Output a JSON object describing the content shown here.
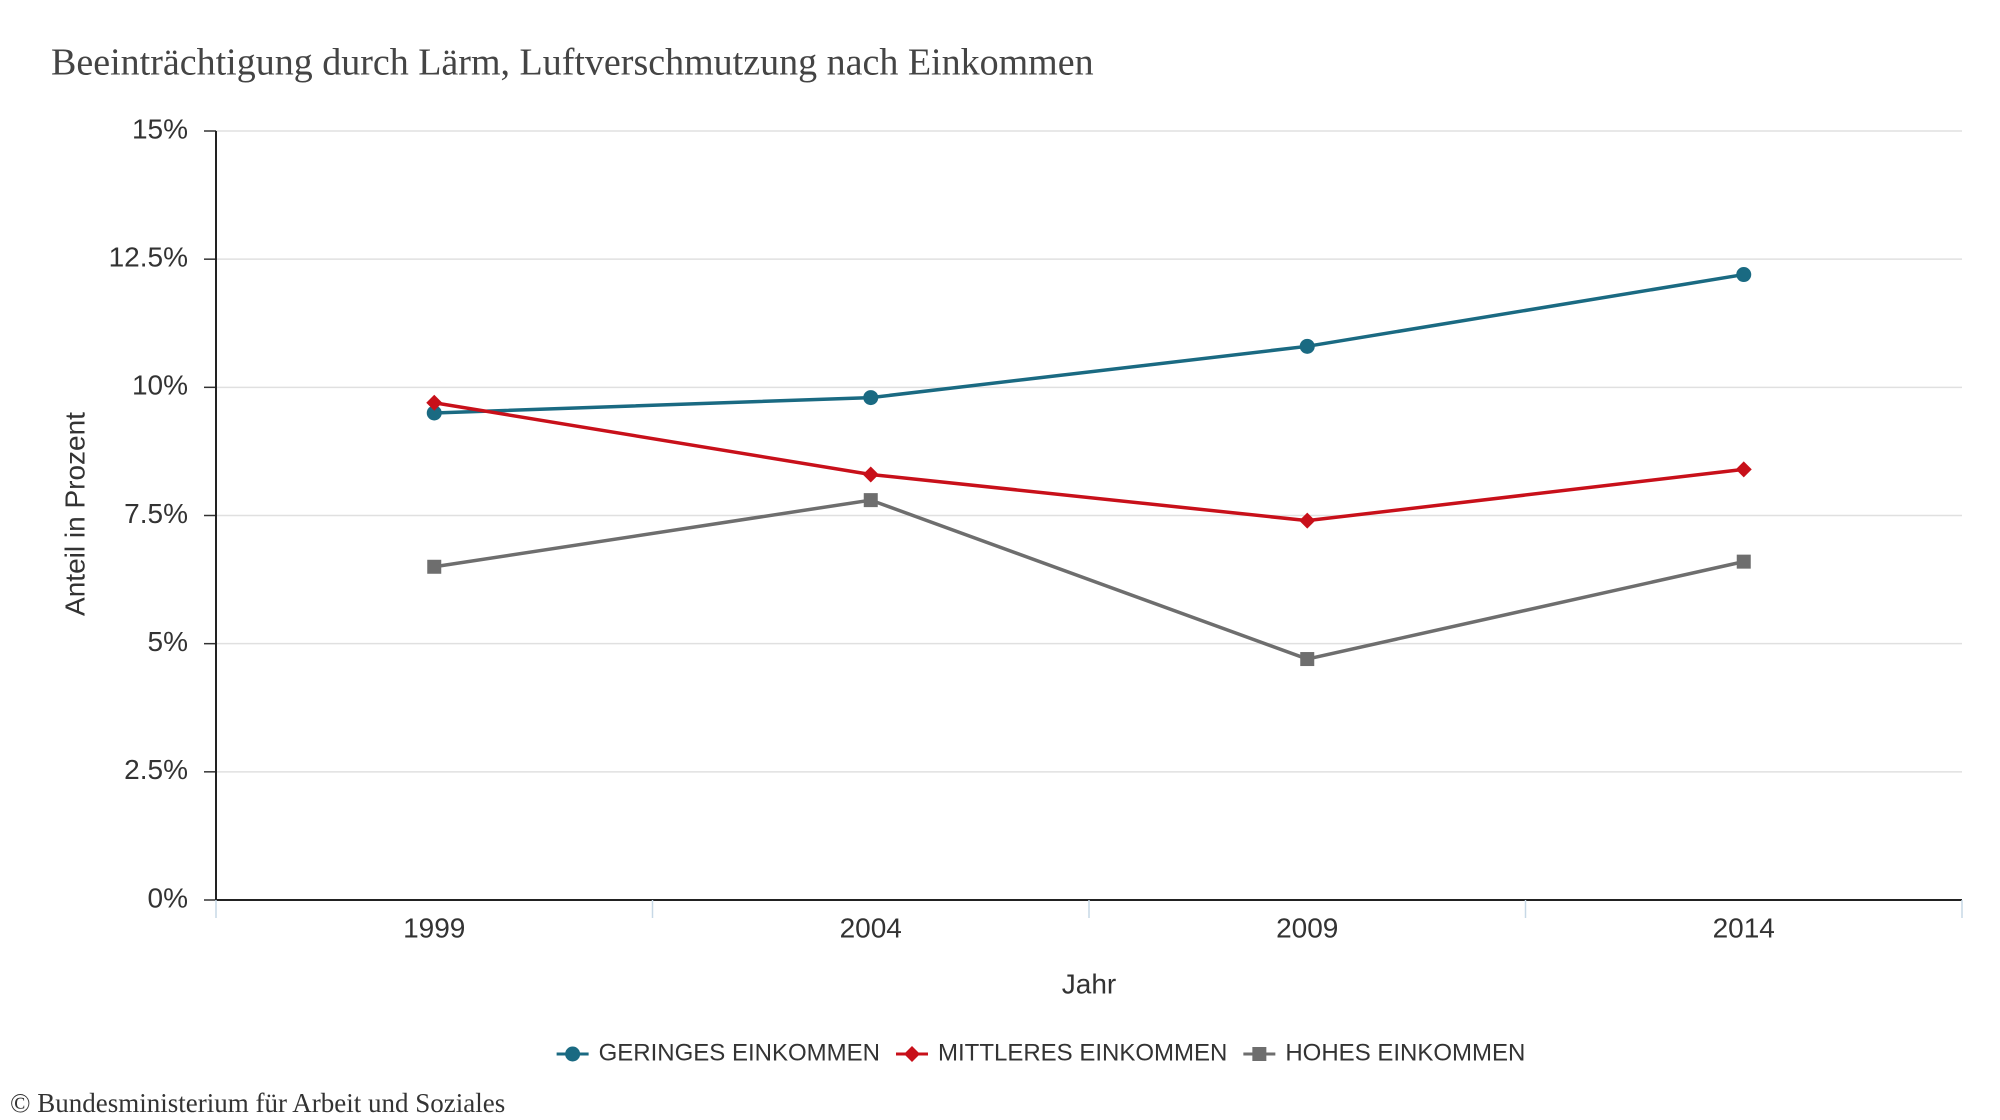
{
  "chart_data": {
    "type": "line",
    "title": "Beeinträchtigung durch Lärm, Luftverschmutzung nach Einkommen",
    "x_label": "Jahr",
    "y_label": "Anteil in Prozent",
    "source": "© Bundesministerium für Arbeit und Soziales",
    "categories": [
      "1999",
      "2004",
      "2009",
      "2014"
    ],
    "series": [
      {
        "name": "GERINGES EINKOMMEN",
        "color": "#1a6a82",
        "marker": "circle",
        "values": [
          9.5,
          9.8,
          10.8,
          12.2
        ]
      },
      {
        "name": "MITTLERES EINKOMMEN",
        "color": "#c8101a",
        "marker": "diamond",
        "values": [
          9.7,
          8.3,
          7.4,
          8.4
        ]
      },
      {
        "name": "HOHES EINKOMMEN",
        "color": "#6e6e6e",
        "marker": "square",
        "values": [
          6.5,
          7.8,
          4.7,
          6.6
        ]
      }
    ],
    "ylim": [
      0,
      15
    ],
    "yticks": [
      {
        "value": 0,
        "label": "0%"
      },
      {
        "value": 2.5,
        "label": "2.5%"
      },
      {
        "value": 5,
        "label": "5%"
      },
      {
        "value": 7.5,
        "label": "7.5%"
      },
      {
        "value": 10,
        "label": "10%"
      },
      {
        "value": 12.5,
        "label": "12.5%"
      },
      {
        "value": 15,
        "label": "15%"
      }
    ],
    "grid": true
  }
}
